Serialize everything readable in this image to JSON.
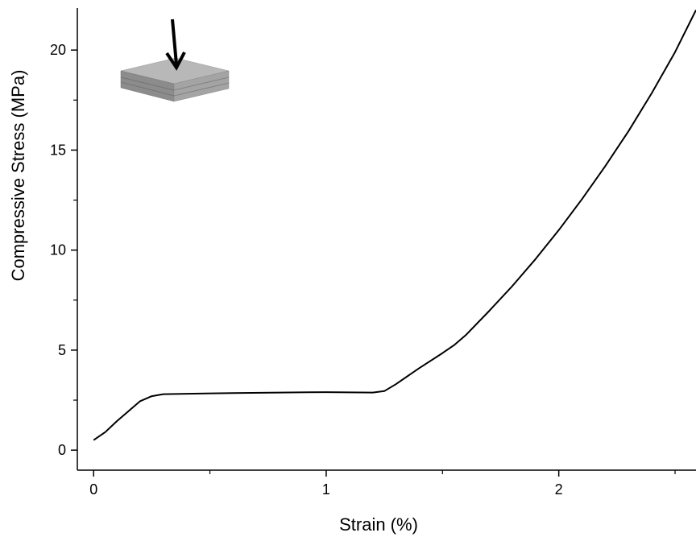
{
  "chart_data": {
    "type": "line",
    "x_label": "Strain (%)",
    "y_label": "Compressive Stress (MPa)",
    "x": [
      0,
      0.05,
      0.1,
      0.15,
      0.2,
      0.25,
      0.3,
      0.4,
      0.6,
      0.8,
      1.0,
      1.2,
      1.25,
      1.3,
      1.4,
      1.5,
      1.55,
      1.6,
      1.7,
      1.8,
      1.9,
      2.0,
      2.1,
      2.2,
      2.3,
      2.4,
      2.5,
      2.59
    ],
    "series": [
      {
        "color": "#000000",
        "values": [
          0.5,
          0.9,
          1.45,
          1.95,
          2.45,
          2.7,
          2.8,
          2.82,
          2.85,
          2.88,
          2.9,
          2.88,
          2.95,
          3.3,
          4.1,
          4.85,
          5.25,
          5.75,
          6.95,
          8.2,
          9.55,
          11.0,
          12.55,
          14.2,
          15.95,
          17.85,
          19.9,
          22.0
        ]
      }
    ],
    "xlim": [
      -0.07,
      2.59
    ],
    "ylim": [
      -1,
      22.1
    ],
    "xticks": [
      0,
      1,
      2
    ],
    "yticks": [
      0,
      5,
      10,
      15,
      20
    ],
    "xminor_ticks": [
      0.5,
      1.5,
      2.5
    ],
    "yminor_ticks": [
      2.5,
      7.5,
      12.5,
      17.5
    ]
  }
}
